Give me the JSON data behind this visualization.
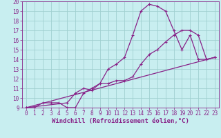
{
  "title": "",
  "xlabel": "Windchill (Refroidissement éolien,°C)",
  "bg_color": "#c8eef0",
  "grid_color": "#a0d0d0",
  "line_color": "#882288",
  "xlim": [
    -0.5,
    23.5
  ],
  "ylim": [
    9,
    20
  ],
  "xticks": [
    0,
    1,
    2,
    3,
    4,
    5,
    6,
    7,
    8,
    9,
    10,
    11,
    12,
    13,
    14,
    15,
    16,
    17,
    18,
    19,
    20,
    21,
    22,
    23
  ],
  "yticks": [
    9,
    10,
    11,
    12,
    13,
    14,
    15,
    16,
    17,
    18,
    19,
    20
  ],
  "line1_x": [
    0,
    1,
    2,
    3,
    4,
    5,
    6,
    7,
    8,
    9,
    10,
    11,
    12,
    13,
    14,
    15,
    16,
    17,
    18,
    19,
    20,
    21,
    22,
    23
  ],
  "line1_y": [
    9,
    9,
    9.5,
    9.5,
    9.5,
    9,
    9,
    10.5,
    11.0,
    11.5,
    13.0,
    13.5,
    14.2,
    16.5,
    19.0,
    19.7,
    19.5,
    19.0,
    17.0,
    15.0,
    16.5,
    14.0,
    14.0,
    14.2
  ],
  "line2_x": [
    0,
    5,
    6,
    7,
    8,
    9,
    10,
    11,
    12,
    13,
    14,
    15,
    16,
    17,
    18,
    19,
    20,
    21,
    22,
    23
  ],
  "line2_y": [
    9,
    9.5,
    10.5,
    11.0,
    10.8,
    11.5,
    11.5,
    11.8,
    11.8,
    12.2,
    13.5,
    14.5,
    15.0,
    15.8,
    16.5,
    17.0,
    17.0,
    16.5,
    14.0,
    14.2
  ],
  "line3_x": [
    0,
    23
  ],
  "line3_y": [
    9,
    14.2
  ],
  "font_color": "#882288",
  "tick_fontsize": 5.5,
  "label_fontsize": 6.5
}
